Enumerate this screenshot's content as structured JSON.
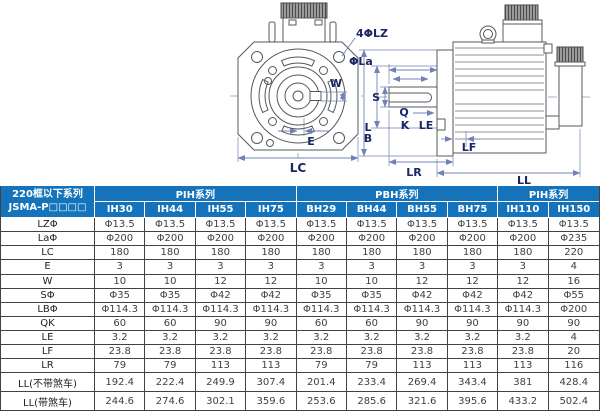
{
  "colors": {
    "header_blue": "#1473bb",
    "table_grid": "#3f4347",
    "drawing_line": "#54585c",
    "dimension_line": "#7282b8",
    "dimension_label": "#1a2666"
  },
  "drawing": {
    "front": {
      "callout_4lz": "4ΦLZ",
      "la": "ΦLa",
      "w": "W",
      "e": "E",
      "lc": "LC"
    },
    "side": {
      "s": "S",
      "q": "Q",
      "k": "K",
      "lb_l": "L",
      "lb_b": "B",
      "le": "LE",
      "lf": "LF",
      "lr": "LR",
      "ll": "LL"
    }
  },
  "table": {
    "corner_header_line1": "220框以下系列",
    "corner_header_line2": "JSMA-P□□□□",
    "groups": [
      {
        "label": "PIH系列",
        "span": 4
      },
      {
        "label": "PBH系列",
        "span": 4
      },
      {
        "label": "PIH系列",
        "span": 2
      }
    ],
    "columns": [
      "IH30",
      "IH44",
      "IH55",
      "IH75",
      "BH29",
      "BH44",
      "BH55",
      "BH75",
      "IH110",
      "IH150"
    ],
    "rows": [
      {
        "label": "LZΦ",
        "values": [
          "Φ13.5",
          "Φ13.5",
          "Φ13.5",
          "Φ13.5",
          "Φ13.5",
          "Φ13.5",
          "Φ13.5",
          "Φ13.5",
          "Φ13.5",
          "Φ13.5"
        ]
      },
      {
        "label": "LaΦ",
        "values": [
          "Φ200",
          "Φ200",
          "Φ200",
          "Φ200",
          "Φ200",
          "Φ200",
          "Φ200",
          "Φ200",
          "Φ200",
          "Φ235"
        ]
      },
      {
        "label": "LC",
        "values": [
          "180",
          "180",
          "180",
          "180",
          "180",
          "180",
          "180",
          "180",
          "180",
          "220"
        ]
      },
      {
        "label": "E",
        "values": [
          "3",
          "3",
          "3",
          "3",
          "3",
          "3",
          "3",
          "3",
          "3",
          "4"
        ]
      },
      {
        "label": "W",
        "values": [
          "10",
          "10",
          "12",
          "12",
          "10",
          "10",
          "12",
          "12",
          "12",
          "16"
        ]
      },
      {
        "label": "SΦ",
        "values": [
          "Φ35",
          "Φ35",
          "Φ42",
          "Φ42",
          "Φ35",
          "Φ35",
          "Φ42",
          "Φ42",
          "Φ42",
          "Φ55"
        ]
      },
      {
        "label": "LBΦ",
        "values": [
          "Φ114.3",
          "Φ114.3",
          "Φ114.3",
          "Φ114.3",
          "Φ114.3",
          "Φ114.3",
          "Φ114.3",
          "Φ114.3",
          "Φ114.3",
          "Φ200"
        ]
      },
      {
        "label": "QK",
        "values": [
          "60",
          "60",
          "90",
          "90",
          "60",
          "60",
          "90",
          "90",
          "90",
          "90"
        ]
      },
      {
        "label": "LE",
        "values": [
          "3.2",
          "3.2",
          "3.2",
          "3.2",
          "3.2",
          "3.2",
          "3.2",
          "3.2",
          "3.2",
          "4"
        ]
      },
      {
        "label": "LF",
        "values": [
          "23.8",
          "23.8",
          "23.8",
          "23.8",
          "23.8",
          "23.8",
          "23.8",
          "23.8",
          "23.8",
          "20"
        ]
      },
      {
        "label": "LR",
        "values": [
          "79",
          "79",
          "113",
          "113",
          "79",
          "79",
          "113",
          "113",
          "113",
          "116"
        ]
      },
      {
        "label": "LL(不带煞车)",
        "values": [
          "192.4",
          "222.4",
          "249.9",
          "307.4",
          "201.4",
          "233.4",
          "269.4",
          "343.4",
          "381",
          "428.4"
        ]
      },
      {
        "label": "LL(带煞车)",
        "values": [
          "244.6",
          "274.6",
          "302.1",
          "359.6",
          "253.6",
          "285.6",
          "321.6",
          "395.6",
          "433.2",
          "502.4"
        ]
      }
    ]
  }
}
